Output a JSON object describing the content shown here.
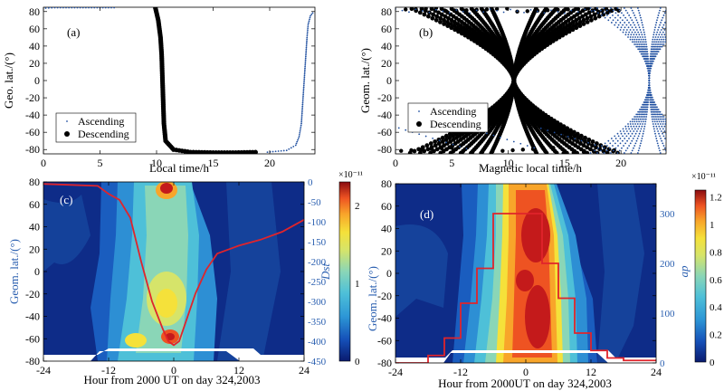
{
  "colors": {
    "descending": "#000000",
    "ascending": "#1f4fa0",
    "dst_line": "#e0242b",
    "ap_line": "#e0242b",
    "right_axis": "#2a5fb0",
    "colormap": [
      "#0a1a6e",
      "#0e3c9c",
      "#1868c8",
      "#2d97d6",
      "#4ec0d8",
      "#8ad6b7",
      "#c6e27a",
      "#f5e13a",
      "#f8a52a",
      "#ee5322",
      "#c41a1b",
      "#8a0b10"
    ]
  },
  "chart_data": [
    {
      "id": "a",
      "type": "scatter",
      "panel_label": "(a)",
      "xlabel": "Local time/h",
      "ylabel": "Geo. lat./(°)",
      "xlim": [
        0,
        24
      ],
      "ylim": [
        -85,
        85
      ],
      "xticks": [
        "0",
        "5",
        "10",
        "15",
        "20"
      ],
      "yticks": [
        "80",
        "60",
        "40",
        "20",
        "0",
        "-20",
        "-40",
        "-60",
        "-80"
      ],
      "legend": {
        "position": "lower-left",
        "entries": [
          "Ascending",
          "Descending"
        ]
      },
      "series": [
        {
          "name": "Descending",
          "points": [
            [
              9.9,
              84
            ],
            [
              10.15,
              70
            ],
            [
              10.35,
              50
            ],
            [
              10.45,
              30
            ],
            [
              10.5,
              10
            ],
            [
              10.55,
              -10
            ],
            [
              10.6,
              -30
            ],
            [
              10.65,
              -50
            ],
            [
              10.8,
              -70
            ],
            [
              11.5,
              -80
            ],
            [
              13,
              -83
            ],
            [
              15,
              -83.5
            ],
            [
              17,
              -83.5
            ],
            [
              19,
              -83
            ]
          ]
        },
        {
          "name": "Ascending",
          "points": [
            [
              19.8,
              -83
            ],
            [
              21.5,
              -81
            ],
            [
              22.3,
              -75
            ],
            [
              22.6,
              -65
            ],
            [
              22.8,
              -50
            ],
            [
              22.9,
              -30
            ],
            [
              23.0,
              -10
            ],
            [
              23.1,
              10
            ],
            [
              23.2,
              30
            ],
            [
              23.3,
              50
            ],
            [
              23.4,
              65
            ],
            [
              23.6,
              75
            ],
            [
              23.9,
              80
            ],
            [
              0.2,
              84
            ],
            [
              1.0,
              84.5
            ],
            [
              2.0,
              84.5
            ],
            [
              3.5,
              84.5
            ],
            [
              5.0,
              84.5
            ],
            [
              6.5,
              84.5
            ]
          ]
        }
      ]
    },
    {
      "id": "b",
      "type": "scatter",
      "panel_label": "(b)",
      "xlabel": "Magnetic local time/h",
      "ylabel": "Geom. lat./(°)",
      "xlim": [
        0,
        24
      ],
      "ylim": [
        -85,
        85
      ],
      "xticks": [
        "0",
        "5",
        "10",
        "15",
        "20"
      ],
      "yticks": [
        "80",
        "60",
        "40",
        "20",
        "0",
        "-20",
        "-40",
        "-60",
        "-80"
      ],
      "legend": {
        "position": "lower-left",
        "entries": [
          "Ascending",
          "Descending"
        ]
      },
      "series": [
        {
          "name": "Descending",
          "description": "orbit bundle converging near 10.5 MLT at equator",
          "points": [
            [
              5,
              84
            ],
            [
              8,
              40
            ],
            [
              10,
              10
            ],
            [
              10.5,
              0
            ],
            [
              11,
              -10
            ],
            [
              13,
              -40
            ],
            [
              16,
              -84
            ],
            [
              16,
              84
            ],
            [
              13,
              40
            ],
            [
              11,
              10
            ],
            [
              10,
              -10
            ],
            [
              8,
              -40
            ],
            [
              5,
              -84
            ]
          ]
        },
        {
          "name": "Ascending",
          "description": "orbit bundle converging near 22.5 MLT",
          "points": [
            [
              19,
              84
            ],
            [
              21.5,
              50
            ],
            [
              22.5,
              0
            ],
            [
              23.5,
              -50
            ],
            [
              0.5,
              -84
            ],
            [
              0.5,
              84
            ],
            [
              23.5,
              50
            ],
            [
              22.5,
              0
            ],
            [
              21.5,
              -50
            ],
            [
              19,
              -84
            ]
          ]
        }
      ]
    },
    {
      "id": "c",
      "type": "heatmap",
      "panel_label": "(c)",
      "xlabel": "Hour from 2000 UT on day 324,2003",
      "ylabel": "Geom. lat./(°)",
      "xlim": [
        -24,
        24
      ],
      "ylim": [
        -80,
        80
      ],
      "xticks": [
        "-24",
        "-12",
        "0",
        "12",
        "24"
      ],
      "yticks": [
        "80",
        "60",
        "40",
        "20",
        "0",
        "-20",
        "-40",
        "-60",
        "-80"
      ],
      "right_axis": {
        "label": "Dst",
        "ticks": [
          "0",
          "-50",
          "-100",
          "-150",
          "-200",
          "-250",
          "-300",
          "-350",
          "-400",
          "-450"
        ],
        "lim": [
          -450,
          0
        ]
      },
      "colorbar": {
        "exponent": "×10⁻¹¹",
        "ticks": [
          "0",
          "1",
          "2"
        ],
        "lim": [
          0,
          2.3
        ]
      },
      "line_series": {
        "name": "Dst",
        "x": [
          -24,
          -14,
          -12,
          -10,
          -8,
          -6,
          -4,
          -2,
          -1,
          0,
          1,
          2,
          4,
          6,
          8,
          12,
          16,
          20,
          24
        ],
        "y": [
          -5,
          -10,
          -30,
          -45,
          -90,
          -200,
          -300,
          -370,
          -400,
          -410,
          -400,
          -360,
          -280,
          -220,
          -180,
          -160,
          -145,
          -125,
          -95
        ]
      }
    },
    {
      "id": "d",
      "type": "heatmap",
      "panel_label": "(d)",
      "xlabel": "Hour from 2000UT on day 324,2003",
      "ylabel": "Geom. lat./(°)",
      "xlim": [
        -24,
        24
      ],
      "ylim": [
        -80,
        80
      ],
      "xticks": [
        "-24",
        "-12",
        "0",
        "12",
        "24"
      ],
      "yticks": [
        "80",
        "60",
        "40",
        "20",
        "0",
        "-20",
        "-40",
        "-60",
        "-80"
      ],
      "right_axis": {
        "label": "ap",
        "ticks": [
          "0",
          "100",
          "200",
          "300"
        ],
        "lim": [
          0,
          360
        ]
      },
      "colorbar": {
        "exponent": "×10⁻¹¹",
        "ticks": [
          "0",
          "0.2",
          "0.4",
          "0.6",
          "0.8",
          "1",
          "1.2"
        ],
        "lim": [
          0,
          1.25
        ]
      },
      "line_series": {
        "name": "ap",
        "x": [
          -24,
          -18,
          -18,
          -15,
          -15,
          -12,
          -12,
          -9,
          -9,
          -6,
          -6,
          0,
          0,
          3,
          3,
          6,
          6,
          9,
          9,
          12,
          12,
          15,
          15,
          18,
          18,
          24
        ],
        "y": [
          0,
          0,
          15,
          15,
          50,
          50,
          120,
          120,
          190,
          190,
          300,
          300,
          300,
          300,
          200,
          200,
          130,
          130,
          60,
          60,
          25,
          25,
          10,
          10,
          5,
          5
        ]
      }
    }
  ]
}
